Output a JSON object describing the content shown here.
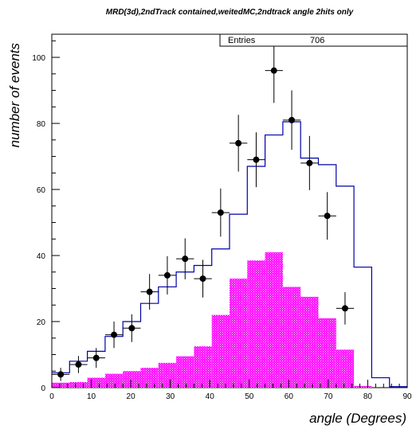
{
  "chart_data": {
    "type": "histogram",
    "title": "MRD(3d),2ndTrack contained,weitedMC,2ndtrack angle 2hits only",
    "xlabel": "angle (Degrees)",
    "ylabel": "number of events",
    "xlim": [
      0,
      90
    ],
    "ylim": [
      0,
      107
    ],
    "x_ticks": [
      0,
      10,
      20,
      30,
      40,
      50,
      60,
      70,
      80,
      90
    ],
    "y_ticks": [
      0,
      20,
      40,
      60,
      80,
      100
    ],
    "stats_box": {
      "label": "Entries",
      "value": "706"
    },
    "bin_width": 4.5,
    "colors": {
      "mc_total": "#0000aa",
      "mc_component": "#ff00ff",
      "data": "#000000"
    },
    "series": [
      {
        "kind": "step-histogram",
        "values": [
          4.5,
          8,
          11,
          15.5,
          20,
          25.5,
          30.5,
          35,
          37,
          42,
          52.5,
          67,
          76.5,
          80.5,
          69.5,
          67.5,
          61,
          36.5,
          3,
          0.3
        ]
      },
      {
        "kind": "filled-histogram",
        "values": [
          1.5,
          1.7,
          3,
          4.2,
          5,
          6,
          7.5,
          9.5,
          12.5,
          22,
          33,
          38.5,
          41,
          30.5,
          27.5,
          21,
          11.5,
          0.5,
          0,
          0
        ]
      },
      {
        "kind": "points-with-errors",
        "x": [
          2.25,
          6.75,
          11.25,
          15.75,
          20.25,
          24.75,
          29.25,
          33.75,
          38.25,
          42.75,
          47.25,
          51.75,
          56.25,
          60.75,
          65.25,
          69.75,
          74.25
        ],
        "values": [
          4,
          7,
          9,
          16,
          18,
          29,
          34,
          39,
          33,
          53,
          74,
          69,
          96,
          81,
          68,
          52,
          24
        ],
        "errors": [
          2,
          2.6,
          3,
          4,
          4.2,
          5.4,
          5.8,
          6.2,
          5.7,
          7.3,
          8.6,
          8.3,
          9.8,
          9,
          8.2,
          7.2,
          4.9
        ]
      }
    ]
  }
}
